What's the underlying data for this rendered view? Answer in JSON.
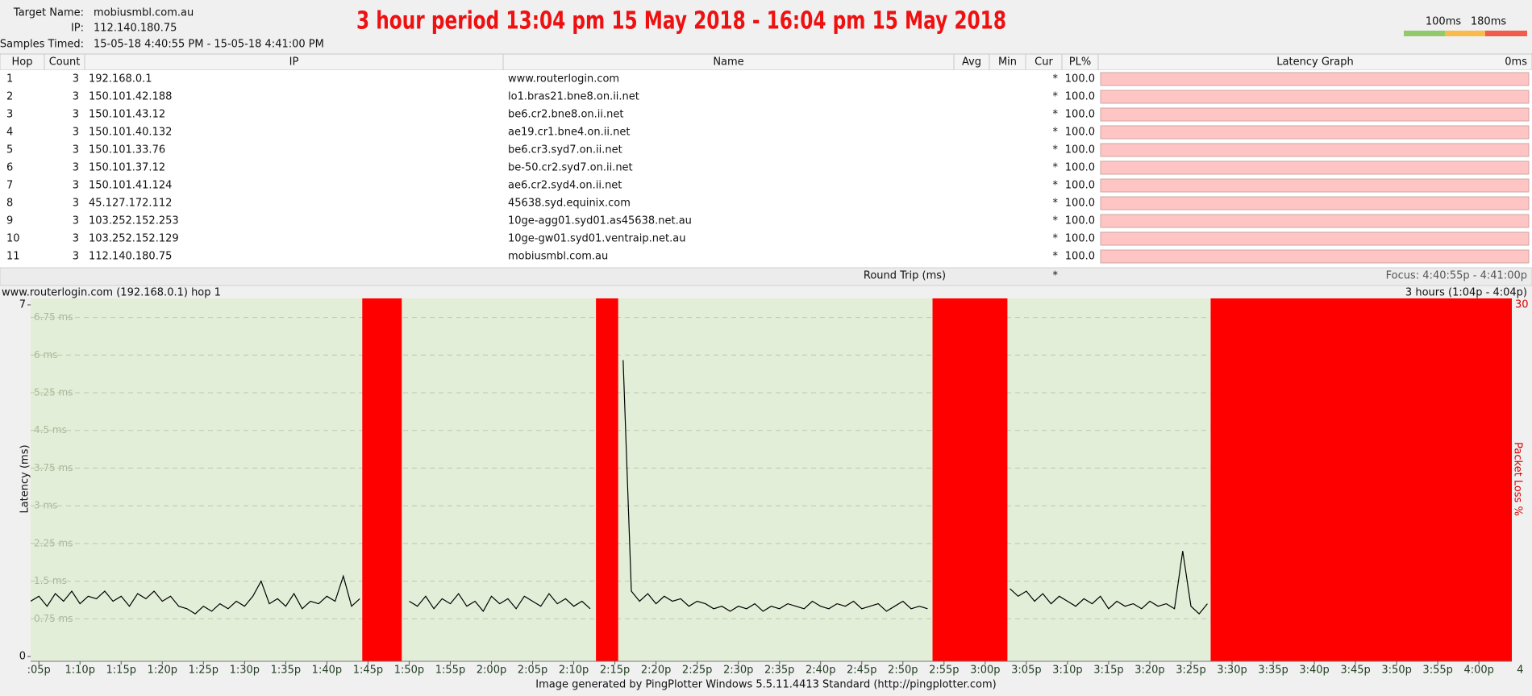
{
  "header": {
    "target_name_label": "Target Name:",
    "target_name": "mobiusmbl.com.au",
    "ip_label": "IP:",
    "ip": "112.140.180.75",
    "samples_label": "Samples Timed:",
    "samples": "15-05-18 4:40:55 PM - 15-05-18 4:41:00 PM"
  },
  "title": "3 hour period 13:04 pm 15 May 2018 - 16:04 pm 15 May 2018",
  "legend": [
    "100ms",
    "180ms"
  ],
  "table": {
    "columns": [
      "Hop",
      "Count",
      "IP",
      "Name",
      "Avg",
      "Min",
      "Cur",
      "PL%",
      "Latency Graph"
    ],
    "graph_scale": "0ms",
    "rows": [
      {
        "hop": 1,
        "count": 3,
        "ip": "192.168.0.1",
        "name": "www.routerlogin.com",
        "cur": "*",
        "pl": "100.0"
      },
      {
        "hop": 2,
        "count": 3,
        "ip": "150.101.42.188",
        "name": "lo1.bras21.bne8.on.ii.net",
        "cur": "*",
        "pl": "100.0"
      },
      {
        "hop": 3,
        "count": 3,
        "ip": "150.101.43.12",
        "name": "be6.cr2.bne8.on.ii.net",
        "cur": "*",
        "pl": "100.0"
      },
      {
        "hop": 4,
        "count": 3,
        "ip": "150.101.40.132",
        "name": "ae19.cr1.bne4.on.ii.net",
        "cur": "*",
        "pl": "100.0"
      },
      {
        "hop": 5,
        "count": 3,
        "ip": "150.101.33.76",
        "name": "be6.cr3.syd7.on.ii.net",
        "cur": "*",
        "pl": "100.0"
      },
      {
        "hop": 6,
        "count": 3,
        "ip": "150.101.37.12",
        "name": "be-50.cr2.syd7.on.ii.net",
        "cur": "*",
        "pl": "100.0"
      },
      {
        "hop": 7,
        "count": 3,
        "ip": "150.101.41.124",
        "name": "ae6.cr2.syd4.on.ii.net",
        "cur": "*",
        "pl": "100.0"
      },
      {
        "hop": 8,
        "count": 3,
        "ip": "45.127.172.112",
        "name": "45638.syd.equinix.com",
        "cur": "*",
        "pl": "100.0"
      },
      {
        "hop": 9,
        "count": 3,
        "ip": "103.252.152.253",
        "name": "10ge-agg01.syd01.as45638.net.au",
        "cur": "*",
        "pl": "100.0"
      },
      {
        "hop": 10,
        "count": 3,
        "ip": "103.252.152.129",
        "name": "10ge-gw01.syd01.ventraip.net.au",
        "cur": "*",
        "pl": "100.0"
      },
      {
        "hop": 11,
        "count": 3,
        "ip": "112.140.180.75",
        "name": "mobiusmbl.com.au",
        "cur": "*",
        "pl": "100.0"
      }
    ],
    "round_trip": {
      "label": "Round Trip (ms)",
      "cur": "*"
    },
    "focus": "Focus: 4:40:55p - 4:41:00p"
  },
  "graph": {
    "title": "www.routerlogin.com (192.168.0.1) hop 1",
    "range": "3 hours (1:04p - 4:04p)",
    "y_label": "Latency (ms)",
    "y2_label": "Packet Loss %",
    "xlim": [
      64,
      244
    ],
    "xticks": [
      {
        "value": 65,
        "label": ":05p"
      },
      {
        "value": 70,
        "label": "1:10p"
      },
      {
        "value": 75,
        "label": "1:15p"
      },
      {
        "value": 80,
        "label": "1:20p"
      },
      {
        "value": 85,
        "label": "1:25p"
      },
      {
        "value": 90,
        "label": "1:30p"
      },
      {
        "value": 95,
        "label": "1:35p"
      },
      {
        "value": 100,
        "label": "1:40p"
      },
      {
        "value": 105,
        "label": "1:45p"
      },
      {
        "value": 110,
        "label": "1:50p"
      },
      {
        "value": 115,
        "label": "1:55p"
      },
      {
        "value": 120,
        "label": "2:00p"
      },
      {
        "value": 125,
        "label": "2:05p"
      },
      {
        "value": 130,
        "label": "2:10p"
      },
      {
        "value": 135,
        "label": "2:15p"
      },
      {
        "value": 140,
        "label": "2:20p"
      },
      {
        "value": 145,
        "label": "2:25p"
      },
      {
        "value": 150,
        "label": "2:30p"
      },
      {
        "value": 155,
        "label": "2:35p"
      },
      {
        "value": 160,
        "label": "2:40p"
      },
      {
        "value": 165,
        "label": "2:45p"
      },
      {
        "value": 170,
        "label": "2:50p"
      },
      {
        "value": 175,
        "label": "2:55p"
      },
      {
        "value": 180,
        "label": "3:00p"
      },
      {
        "value": 185,
        "label": "3:05p"
      },
      {
        "value": 190,
        "label": "3:10p"
      },
      {
        "value": 195,
        "label": "3:15p"
      },
      {
        "value": 200,
        "label": "3:20p"
      },
      {
        "value": 205,
        "label": "3:25p"
      },
      {
        "value": 210,
        "label": "3:30p"
      },
      {
        "value": 215,
        "label": "3:35p"
      },
      {
        "value": 220,
        "label": "3:40p"
      },
      {
        "value": 225,
        "label": "3:45p"
      },
      {
        "value": 230,
        "label": "3:50p"
      },
      {
        "value": 235,
        "label": "3:55p"
      },
      {
        "value": 240,
        "label": "4:00p"
      },
      {
        "value": 245,
        "label": "4"
      }
    ],
    "ylim": [
      0,
      7
    ],
    "yticks": [
      0,
      7
    ],
    "grid_lines": [
      {
        "value": 0.75,
        "label": "0.75 ms"
      },
      {
        "value": 1.5,
        "label": "1.5 ms"
      },
      {
        "value": 2.25,
        "label": "2.25 ms"
      },
      {
        "value": 3,
        "label": "3 ms"
      },
      {
        "value": 3.75,
        "label": "3.75 ms"
      },
      {
        "value": 4.5,
        "label": "4.5 ms"
      },
      {
        "value": 5.25,
        "label": "5.25 ms"
      },
      {
        "value": 6,
        "label": "6 ms"
      },
      {
        "value": 6.75,
        "label": "6.75 ms"
      }
    ],
    "y2lim": [
      0,
      30
    ],
    "y2ticks": [
      30
    ],
    "loss_color": "#ff0000",
    "line_color": "#000000",
    "loss_periods": [
      {
        "start": 104.3,
        "end": 109.1,
        "loss": 100
      },
      {
        "start": 132.7,
        "end": 135.4,
        "loss": 100
      },
      {
        "start": 173.6,
        "end": 182.7,
        "loss": 100
      },
      {
        "start": 207.4,
        "end": 244,
        "loss": 100
      }
    ],
    "latency": {
      "x": [
        64,
        65,
        66,
        67,
        68,
        69,
        70,
        71,
        72,
        73,
        74,
        75,
        76,
        77,
        78,
        79,
        80,
        81,
        82,
        83,
        84,
        85,
        86,
        87,
        88,
        89,
        90,
        91,
        92,
        93,
        94,
        95,
        96,
        97,
        98,
        99,
        100,
        101,
        102,
        103,
        104,
        105,
        106,
        107,
        108,
        109,
        110,
        111,
        112,
        113,
        114,
        115,
        116,
        117,
        118,
        119,
        120,
        121,
        122,
        123,
        124,
        125,
        126,
        127,
        128,
        129,
        130,
        131,
        132,
        133,
        134,
        135,
        136,
        137,
        138,
        139,
        140,
        141,
        142,
        143,
        144,
        145,
        146,
        147,
        148,
        149,
        150,
        151,
        152,
        153,
        154,
        155,
        156,
        157,
        158,
        159,
        160,
        161,
        162,
        163,
        164,
        165,
        166,
        167,
        168,
        169,
        170,
        171,
        172,
        173,
        174,
        175,
        176,
        177,
        178,
        179,
        180,
        181,
        182,
        183,
        184,
        185,
        186,
        187,
        188,
        189,
        190,
        191,
        192,
        193,
        194,
        195,
        196,
        197,
        198,
        199,
        200,
        201,
        202,
        203,
        204,
        205,
        206,
        207
      ],
      "values": [
        1.1,
        1.2,
        1.0,
        1.25,
        1.1,
        1.3,
        1.05,
        1.2,
        1.15,
        1.3,
        1.1,
        1.2,
        1.0,
        1.25,
        1.15,
        1.3,
        1.1,
        1.2,
        1.0,
        0.95,
        0.85,
        1.0,
        0.9,
        1.05,
        0.95,
        1.1,
        1.0,
        1.2,
        1.5,
        1.05,
        1.15,
        1.0,
        1.25,
        0.95,
        1.1,
        1.05,
        1.2,
        1.1,
        1.6,
        1.0,
        1.15,
        null,
        null,
        null,
        null,
        null,
        1.1,
        1.0,
        1.2,
        0.95,
        1.15,
        1.05,
        1.25,
        1.0,
        1.1,
        0.9,
        1.2,
        1.05,
        1.15,
        0.95,
        1.2,
        1.1,
        1.0,
        1.25,
        1.05,
        1.15,
        1.0,
        1.1,
        0.95,
        null,
        null,
        null,
        5.9,
        1.3,
        1.1,
        1.25,
        1.05,
        1.2,
        1.1,
        1.15,
        1.0,
        1.1,
        1.05,
        0.95,
        1.0,
        0.9,
        1.0,
        0.95,
        1.05,
        0.9,
        1.0,
        0.95,
        1.05,
        1.0,
        0.95,
        1.1,
        1.0,
        0.95,
        1.05,
        1.0,
        1.1,
        0.95,
        1.0,
        1.05,
        0.9,
        1.0,
        1.1,
        0.95,
        1.0,
        0.95,
        null,
        null,
        null,
        null,
        null,
        null,
        null,
        null,
        null,
        1.35,
        1.2,
        1.3,
        1.1,
        1.25,
        1.05,
        1.2,
        1.1,
        1.0,
        1.15,
        1.05,
        1.2,
        0.95,
        1.1,
        1.0,
        1.05,
        0.95,
        1.1,
        1.0,
        1.05,
        0.95,
        2.1,
        1.0,
        0.85,
        1.05
      ]
    }
  },
  "footer": "Image generated by PingPlotter Windows 5.5.11.4413 Standard (http://pingplotter.com)"
}
